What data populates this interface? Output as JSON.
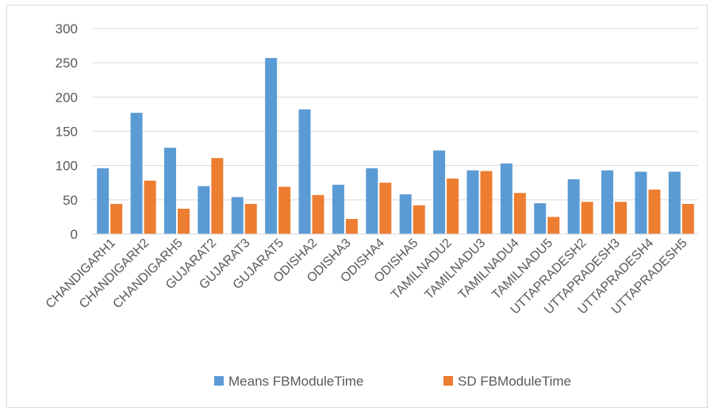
{
  "chart_data": {
    "type": "bar",
    "title": "",
    "xlabel": "",
    "ylabel": "",
    "ylim": [
      0,
      300
    ],
    "yticks": [
      0,
      50,
      100,
      150,
      200,
      250,
      300
    ],
    "grid": true,
    "legend_position": "bottom",
    "categories": [
      "CHANDIGARH1",
      "CHANDIGARH2",
      "CHANDIGARH5",
      "GUJARAT2",
      "GUJARAT3",
      "GUJARAT5",
      "ODISHA2",
      "ODISHA3",
      "ODISHA4",
      "ODISHA5",
      "TAMILNADU2",
      "TAMILNADU3",
      "TAMILNADU4",
      "TAMILNADU5",
      "UTTAPRADESH2",
      "UTTAPRADESH3",
      "UTTAPRADESH4",
      "UTTAPRADESH5"
    ],
    "series": [
      {
        "name": "Means FBModuleTime",
        "color": "#5B9BD5",
        "values": [
          96,
          177,
          126,
          70,
          54,
          257,
          182,
          72,
          96,
          58,
          122,
          93,
          103,
          45,
          80,
          93,
          91,
          91
        ]
      },
      {
        "name": "SD FBModuleTime",
        "color": "#ED7D31",
        "values": [
          44,
          78,
          37,
          111,
          44,
          69,
          57,
          22,
          75,
          42,
          81,
          92,
          60,
          25,
          47,
          47,
          65,
          44
        ]
      }
    ]
  }
}
